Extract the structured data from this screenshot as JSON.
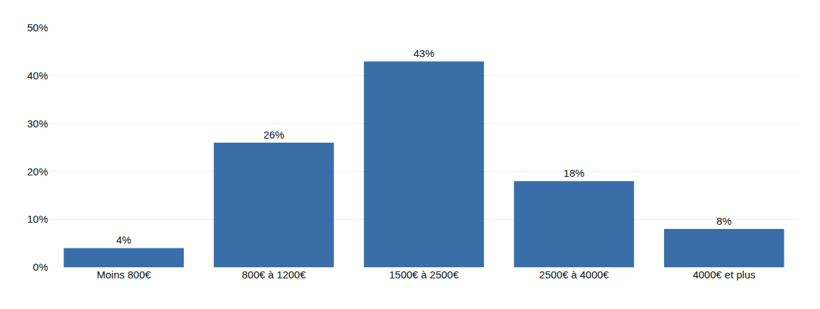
{
  "chart_data": {
    "type": "bar",
    "categories": [
      "Moins 800€",
      "800€ à 1200€",
      "1500€ à 2500€",
      "2500€ à 4000€",
      "4000€ et plus"
    ],
    "values": [
      4,
      26,
      43,
      18,
      8
    ],
    "value_labels": [
      "4%",
      "26%",
      "43%",
      "18%",
      "8%"
    ],
    "data_labels": true,
    "color": "#3a6ea8",
    "ylim": [
      0,
      50
    ],
    "yticks": [
      {
        "value": 0,
        "label": "0%"
      },
      {
        "value": 10,
        "label": "10%"
      },
      {
        "value": 20,
        "label": "20%"
      },
      {
        "value": 30,
        "label": "30%"
      },
      {
        "value": 40,
        "label": "40%"
      },
      {
        "value": 50,
        "label": "50%"
      }
    ],
    "grid": true
  }
}
